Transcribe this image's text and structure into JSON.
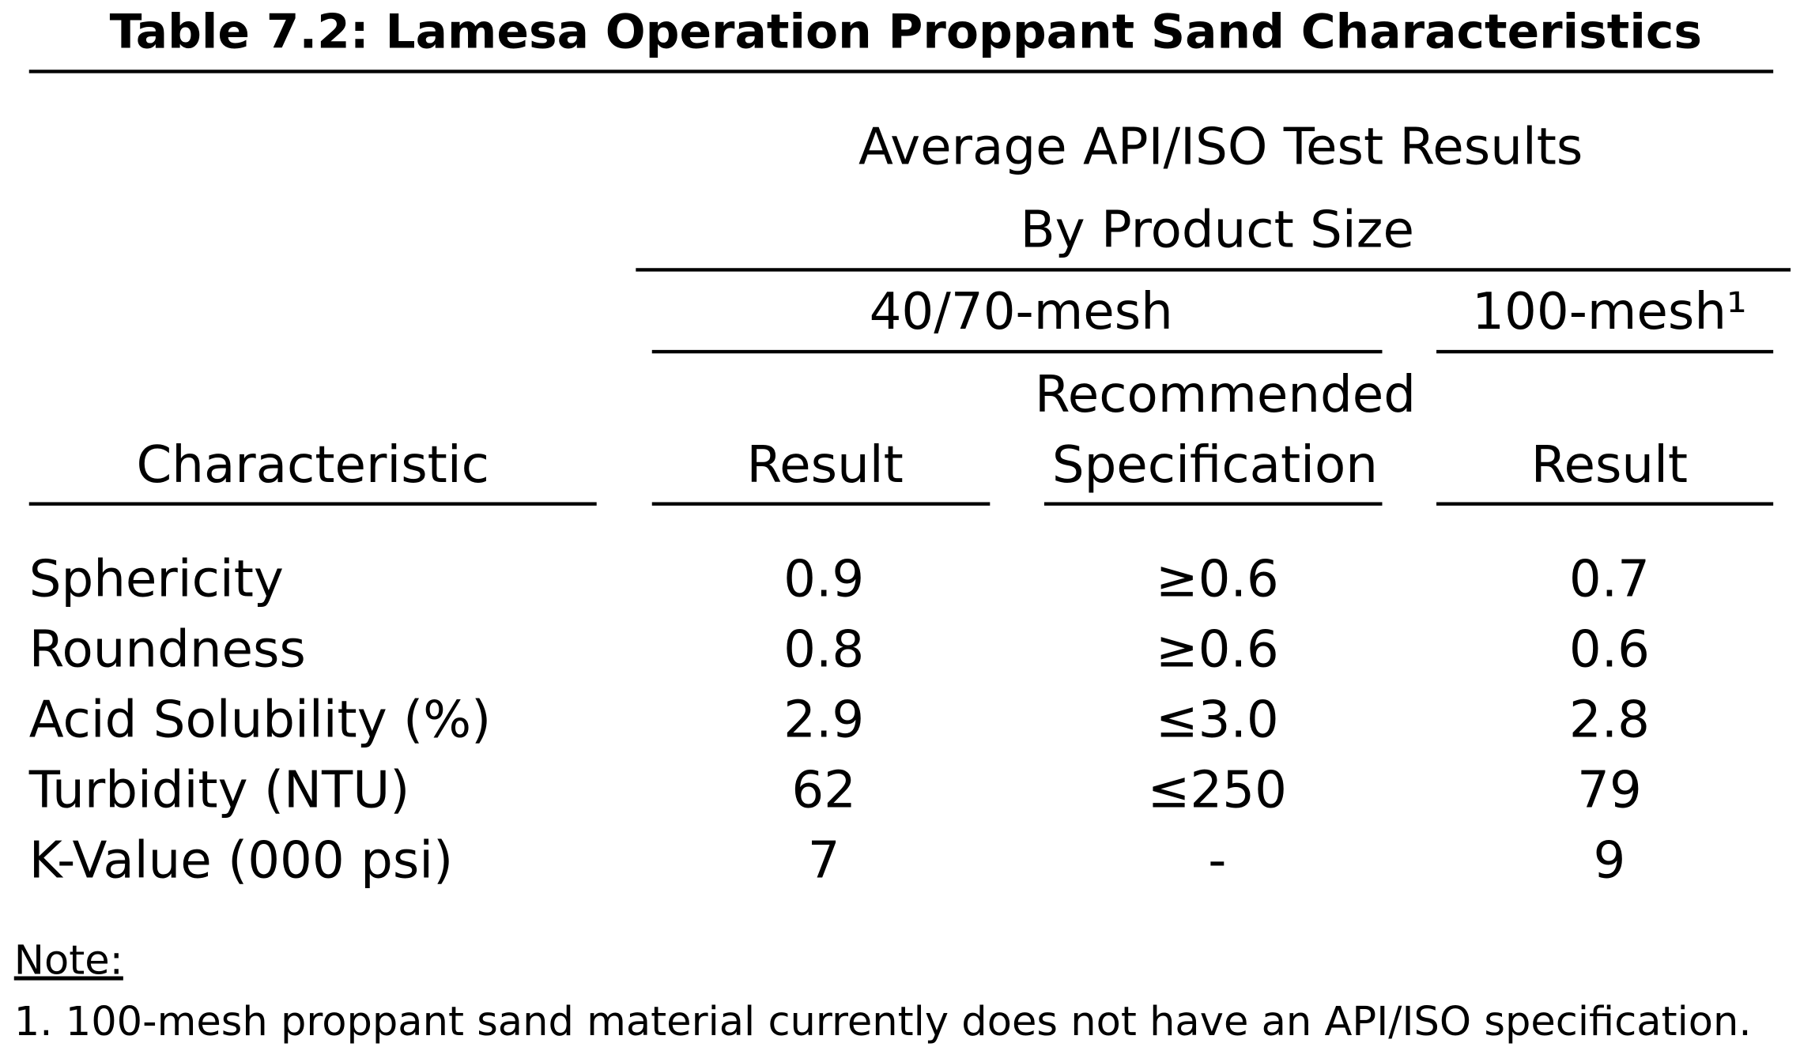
{
  "title": "Table 7.2: Lamesa Operation Proppant Sand Characteristics",
  "header": {
    "group": [
      "Average API/ISO Test Results",
      "By Product Size"
    ],
    "sizes": [
      "40/70-mesh",
      "100-mesh¹"
    ],
    "columns": [
      "Characteristic",
      "Result",
      [
        "Recommended",
        "Specification"
      ],
      "Result"
    ]
  },
  "table": {
    "rows": [
      [
        "Sphericity",
        "0.9",
        "≥0.6",
        "0.7"
      ],
      [
        "Roundness",
        "0.8",
        "≥0.6",
        "0.6"
      ],
      [
        "Acid Solubility (%)",
        "2.9",
        "≤3.0",
        "2.8"
      ],
      [
        "Turbidity (NTU)",
        "62",
        "≤250",
        "79"
      ],
      [
        "K-Value (000 psi)",
        "7",
        "-",
        "9"
      ]
    ]
  },
  "note": {
    "label": "Note:",
    "text": "1. 100-mesh proppant sand material currently does not have an API/ISO specification."
  }
}
